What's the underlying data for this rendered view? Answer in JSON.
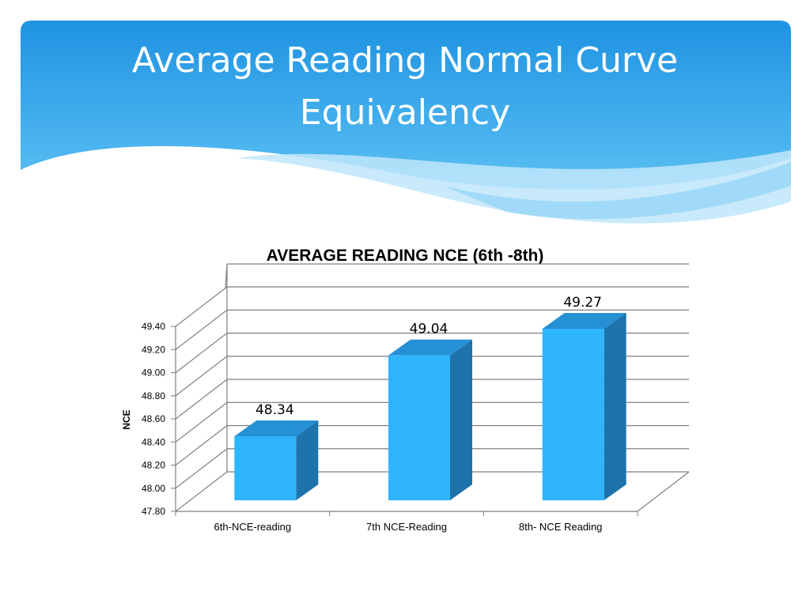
{
  "slide": {
    "title": "Average Reading Normal Curve Equivalency"
  },
  "colors": {
    "header_top": "#1e93e2",
    "header_bottom": "#5cc0f3",
    "wave_light": "#bfe6fb",
    "bar_front": "#2fb5fc",
    "bar_top": "#2690d4",
    "bar_side": "#1e73aa",
    "gridline": "#7f7f7f"
  },
  "chart_data": {
    "type": "bar",
    "title": "AVERAGE READING NCE (6th -8th)",
    "ylabel": "NCE",
    "xlabel": "",
    "categories": [
      "6th-NCE-reading",
      "7th NCE-Reading",
      "8th- NCE Reading"
    ],
    "values": [
      48.34,
      49.04,
      49.27
    ],
    "data_labels": [
      "48.34",
      "49.04",
      "49.27"
    ],
    "ylim": [
      47.8,
      49.4
    ],
    "yticks": [
      "47.80",
      "48.00",
      "48.20",
      "48.40",
      "48.60",
      "48.80",
      "49.00",
      "49.20",
      "49.40"
    ],
    "grid": true,
    "legend": "none",
    "style": "3d-column"
  }
}
